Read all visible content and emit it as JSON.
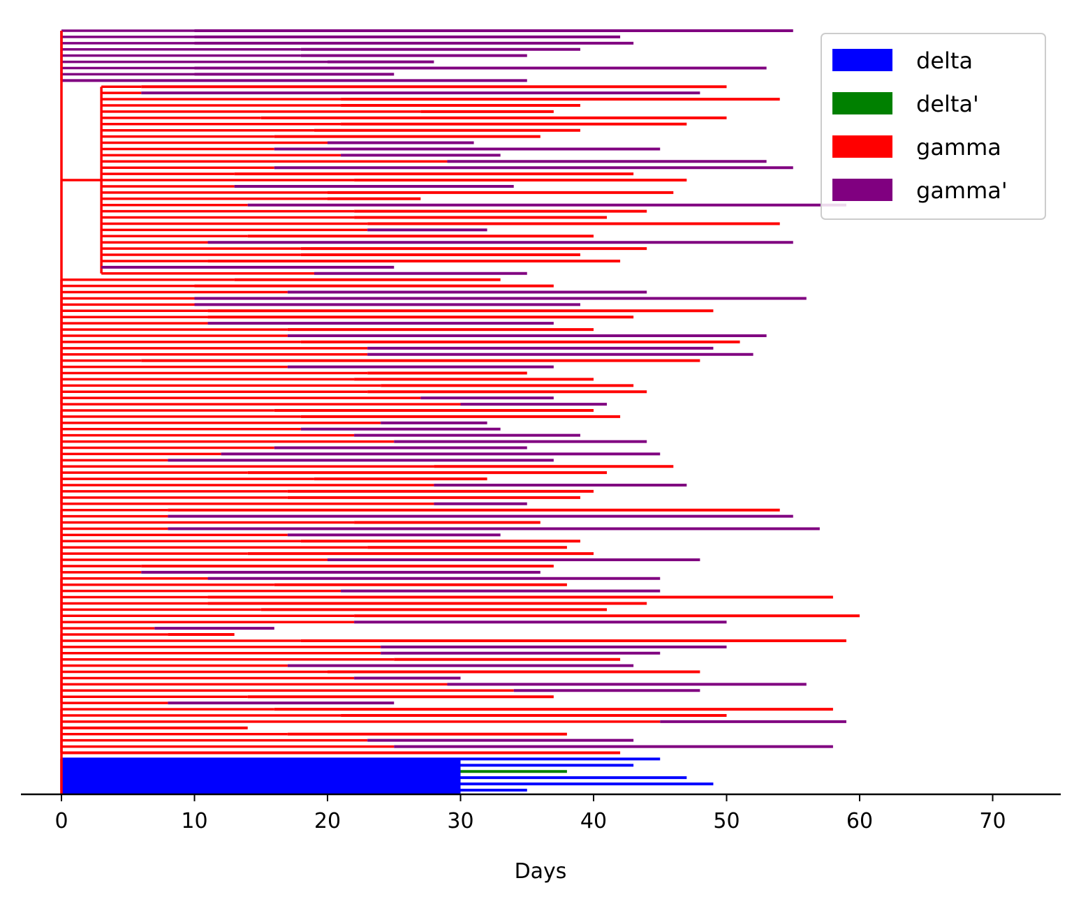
{
  "chart_data": {
    "type": "tree",
    "title": "",
    "xlabel": "Days",
    "ylabel": "",
    "xlim": [
      -3,
      75
    ],
    "x_ticks": [
      0,
      10,
      20,
      30,
      40,
      50,
      60,
      70
    ],
    "x_tick_labels": [
      "0",
      "10",
      "20",
      "30",
      "40",
      "50",
      "60",
      "70"
    ],
    "grid": false,
    "legend_position": "top-right",
    "legend": [
      {
        "label": "delta",
        "color": "#0000ff"
      },
      {
        "label": "delta'",
        "color": "#008000"
      },
      {
        "label": "gamma",
        "color": "#ff0000"
      },
      {
        "label": "gamma'",
        "color": "#800080"
      }
    ],
    "colors": {
      "delta": "#0000ff",
      "delta'": "#008000",
      "gamma": "#ff0000",
      "gamma'": "#800080"
    },
    "trunk": {
      "type": "gamma",
      "x": 0
    },
    "clades": [
      {
        "type": "gamma'",
        "split": 0,
        "branches": [
          [
            10,
            55,
            "gamma'"
          ],
          [
            10,
            42,
            "gamma'"
          ],
          [
            10,
            43,
            "gamma'"
          ],
          [
            18,
            39,
            "gamma'"
          ],
          [
            18,
            35,
            "gamma'"
          ],
          [
            20,
            28,
            "gamma'"
          ],
          [
            10,
            53,
            "gamma'"
          ],
          [
            10,
            25,
            "gamma'"
          ],
          [
            0,
            35,
            "gamma'"
          ]
        ]
      },
      {
        "type": "gamma",
        "split": 3,
        "branches": [
          [
            6,
            50,
            "gamma"
          ],
          [
            6,
            48,
            "gamma'"
          ],
          [
            21,
            54,
            "gamma"
          ],
          [
            21,
            39,
            "gamma"
          ],
          [
            27,
            37,
            "gamma"
          ],
          [
            15,
            50,
            "gamma"
          ],
          [
            21,
            47,
            "gamma"
          ],
          [
            19,
            39,
            "gamma"
          ],
          [
            16,
            36,
            "gamma"
          ],
          [
            20,
            31,
            "gamma'"
          ],
          [
            16,
            45,
            "gamma'"
          ],
          [
            21,
            33,
            "gamma'"
          ],
          [
            29,
            53,
            "gamma'"
          ],
          [
            16,
            55,
            "gamma'"
          ],
          [
            13,
            43,
            "gamma"
          ],
          [
            22,
            47,
            "gamma"
          ],
          [
            13,
            34,
            "gamma'"
          ],
          [
            20,
            46,
            "gamma"
          ],
          [
            20,
            27,
            "gamma"
          ],
          [
            14,
            59,
            "gamma'"
          ],
          [
            22,
            44,
            "gamma"
          ],
          [
            22,
            41,
            "gamma"
          ],
          [
            23,
            54,
            "gamma"
          ],
          [
            23,
            32,
            "gamma'"
          ],
          [
            14,
            40,
            "gamma"
          ],
          [
            11,
            55,
            "gamma'"
          ],
          [
            18,
            44,
            "gamma"
          ],
          [
            18,
            39,
            "gamma"
          ],
          [
            11,
            42,
            "gamma"
          ],
          [
            3,
            25,
            "gamma'"
          ],
          [
            19,
            35,
            "gamma'"
          ]
        ]
      },
      {
        "type": "gamma",
        "split": 0,
        "branches": [
          [
            13,
            33,
            "gamma"
          ],
          [
            10,
            37,
            "gamma"
          ],
          [
            17,
            44,
            "gamma'"
          ],
          [
            10,
            56,
            "gamma'"
          ],
          [
            10,
            39,
            "gamma'"
          ],
          [
            11,
            49,
            "gamma"
          ],
          [
            11,
            43,
            "gamma"
          ],
          [
            11,
            37,
            "gamma'"
          ],
          [
            17,
            40,
            "gamma"
          ],
          [
            17,
            53,
            "gamma'"
          ],
          [
            18,
            51,
            "gamma"
          ],
          [
            23,
            49,
            "gamma'"
          ],
          [
            23,
            52,
            "gamma'"
          ],
          [
            6,
            48,
            "gamma"
          ],
          [
            17,
            37,
            "gamma'"
          ],
          [
            23,
            35,
            "gamma"
          ],
          [
            22,
            40,
            "gamma"
          ],
          [
            24,
            43,
            "gamma"
          ],
          [
            23,
            44,
            "gamma"
          ],
          [
            27,
            37,
            "gamma'"
          ],
          [
            30,
            41,
            "gamma'"
          ]
        ]
      },
      {
        "type": "gamma",
        "split": 0,
        "branches": [
          [
            16,
            40,
            "gamma"
          ],
          [
            18,
            42,
            "gamma"
          ],
          [
            24,
            32,
            "gamma'"
          ],
          [
            18,
            33,
            "gamma'"
          ],
          [
            22,
            39,
            "gamma'"
          ],
          [
            25,
            44,
            "gamma'"
          ],
          [
            16,
            35,
            "gamma'"
          ],
          [
            12,
            45,
            "gamma'"
          ],
          [
            8,
            37,
            "gamma'"
          ],
          [
            28,
            46,
            "gamma"
          ],
          [
            14,
            41,
            "gamma"
          ],
          [
            19,
            32,
            "gamma"
          ],
          [
            28,
            47,
            "gamma'"
          ],
          [
            17,
            40,
            "gamma"
          ],
          [
            17,
            39,
            "gamma"
          ],
          [
            28,
            35,
            "gamma'"
          ]
        ]
      },
      {
        "type": "gamma",
        "split": 0,
        "branches": [
          [
            8,
            54,
            "gamma"
          ],
          [
            8,
            55,
            "gamma'"
          ],
          [
            22,
            36,
            "gamma"
          ],
          [
            8,
            57,
            "gamma'"
          ],
          [
            17,
            33,
            "gamma'"
          ],
          [
            18,
            39,
            "gamma"
          ],
          [
            23,
            38,
            "gamma"
          ],
          [
            14,
            40,
            "gamma"
          ],
          [
            20,
            48,
            "gamma'"
          ],
          [
            6,
            37,
            "gamma"
          ],
          [
            6,
            36,
            "gamma'"
          ]
        ]
      },
      {
        "type": "gamma",
        "split": 0,
        "branches": [
          [
            11,
            45,
            "gamma'"
          ],
          [
            16,
            38,
            "gamma"
          ],
          [
            21,
            45,
            "gamma'"
          ],
          [
            11,
            58,
            "gamma"
          ],
          [
            11,
            44,
            "gamma"
          ],
          [
            15,
            41,
            "gamma"
          ],
          [
            22,
            60,
            "gamma"
          ],
          [
            22,
            50,
            "gamma'"
          ],
          [
            7,
            16,
            "gamma'"
          ]
        ]
      },
      {
        "type": "gamma",
        "split": 0,
        "branches": [
          [
            8,
            13,
            "gamma"
          ],
          [
            18,
            59,
            "gamma"
          ],
          [
            24,
            50,
            "gamma'"
          ],
          [
            24,
            45,
            "gamma'"
          ],
          [
            25,
            42,
            "gamma"
          ],
          [
            17,
            43,
            "gamma'"
          ],
          [
            20,
            48,
            "gamma"
          ],
          [
            22,
            30,
            "gamma'"
          ],
          [
            29,
            56,
            "gamma'"
          ],
          [
            34,
            48,
            "gamma'"
          ],
          [
            14,
            37,
            "gamma"
          ],
          [
            8,
            25,
            "gamma'"
          ]
        ]
      },
      {
        "type": "gamma",
        "split": 0,
        "branches": [
          [
            16,
            58,
            "gamma"
          ],
          [
            21,
            50,
            "gamma"
          ],
          [
            45,
            59,
            "gamma'"
          ],
          [
            0,
            14,
            "gamma"
          ],
          [
            17,
            38,
            "gamma"
          ],
          [
            23,
            43,
            "gamma'"
          ],
          [
            25,
            58,
            "gamma'"
          ],
          [
            0,
            42,
            "gamma"
          ]
        ]
      },
      {
        "type": "delta",
        "split": 0,
        "branches": [
          [
            0,
            45,
            "delta"
          ],
          [
            0,
            43,
            "delta"
          ],
          [
            30,
            38,
            "delta'"
          ],
          [
            0,
            47,
            "delta"
          ],
          [
            0,
            49,
            "delta"
          ],
          [
            0,
            35,
            "delta"
          ]
        ]
      }
    ]
  }
}
